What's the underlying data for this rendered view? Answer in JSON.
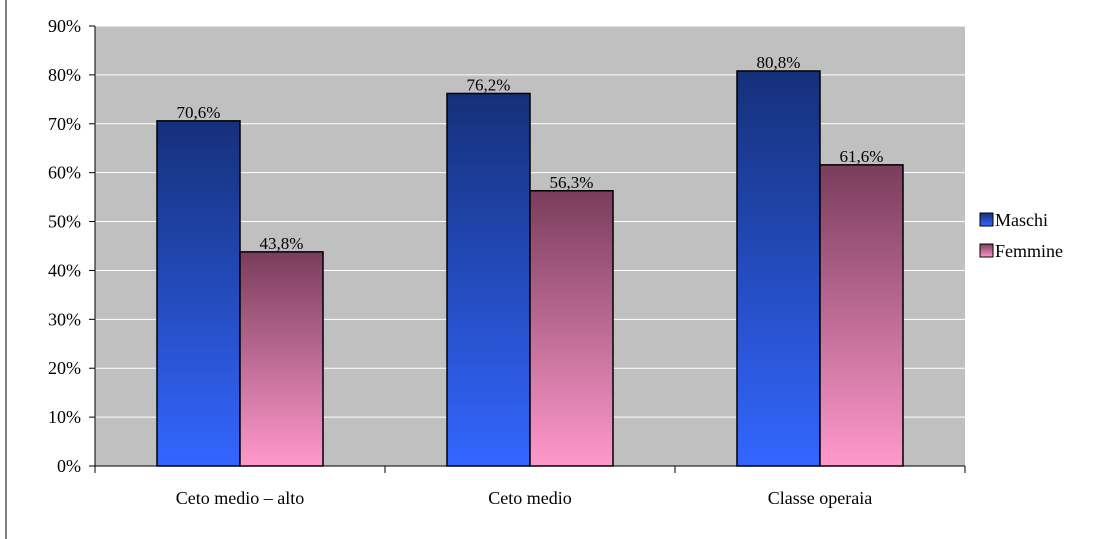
{
  "chart_data": {
    "type": "bar",
    "title": "",
    "xlabel": "",
    "ylabel": "",
    "categories": [
      "Ceto medio – alto",
      "Ceto medio",
      "Classe operaia"
    ],
    "series": [
      {
        "name": "Maschi",
        "values": [
          70.6,
          76.2,
          80.8
        ],
        "labels": [
          "70,6%",
          "76,2%",
          "80,8%"
        ]
      },
      {
        "name": "Femmine",
        "values": [
          43.8,
          56.3,
          61.6
        ],
        "labels": [
          "43,8%",
          "56,3%",
          "61,6%"
        ]
      }
    ],
    "ylim": [
      0,
      90
    ],
    "yticks": [
      0,
      10,
      20,
      30,
      40,
      50,
      60,
      70,
      80,
      90
    ],
    "ytick_labels": [
      "0%",
      "10%",
      "20%",
      "30%",
      "40%",
      "50%",
      "60%",
      "70%",
      "80%",
      "90%"
    ],
    "grid": true,
    "legend_position": "right",
    "colors": {
      "plot_background": "#c0c0c0",
      "gridline": "#ffffff",
      "maschi_top": "#15307a",
      "maschi_bottom": "#3366ff",
      "femmine_top": "#7a3d5c",
      "femmine_bottom": "#ff99cc"
    }
  }
}
